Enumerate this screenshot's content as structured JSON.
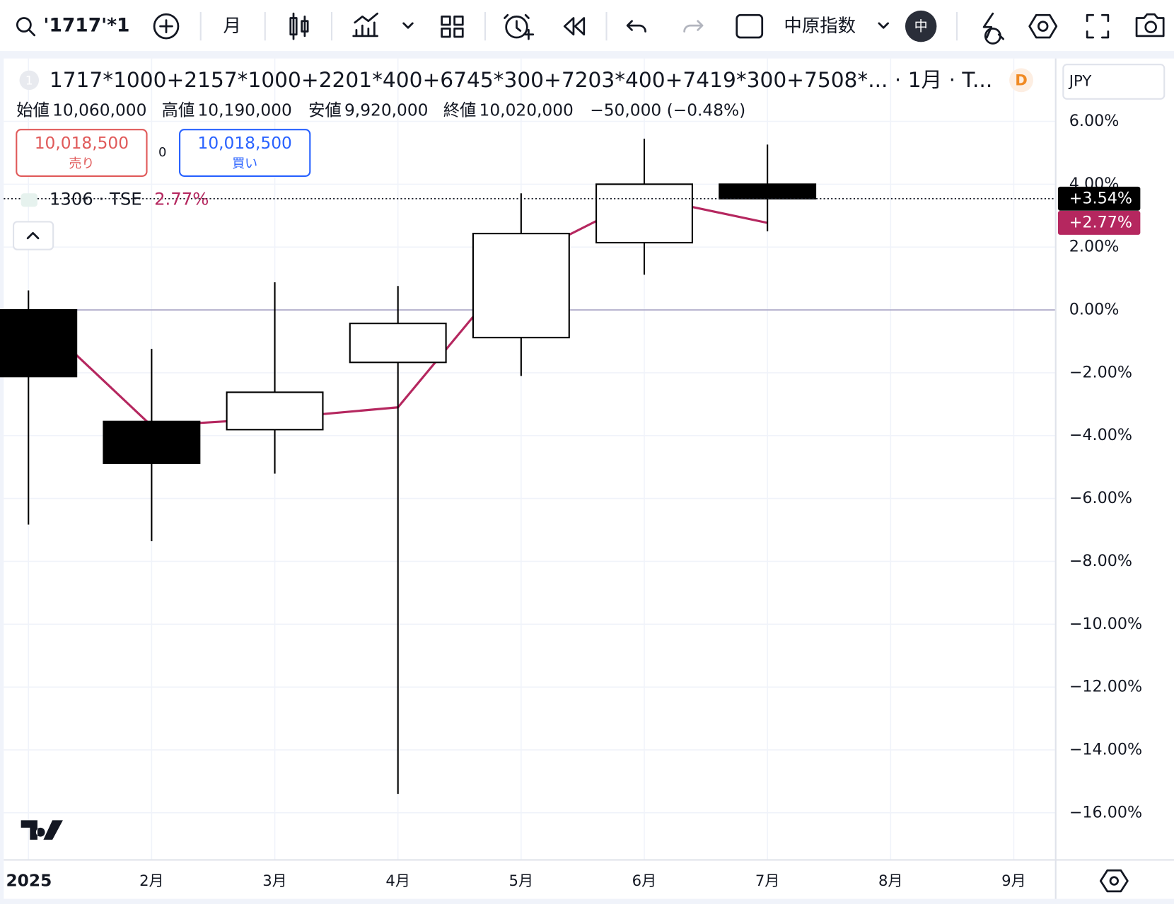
{
  "toolbar": {
    "symbol": "'1717'*1",
    "interval": "月",
    "indicator": "中原指数",
    "badge": "中"
  },
  "legend": {
    "index": "1",
    "title": "1717*1000+2157*1000+2201*400+6745*300+7203*400+7419*300+7508*... · 1月 · T...",
    "source": "D",
    "ohlc": [
      {
        "label": "始値",
        "value": "10,060,000"
      },
      {
        "label": "高値",
        "value": "10,190,000"
      },
      {
        "label": "安値",
        "value": "9,920,000"
      },
      {
        "label": "終値",
        "value": "10,020,000"
      }
    ],
    "change": "−50,000 (−0.48%)"
  },
  "trade": {
    "sell_price": "10,018,500",
    "sell": "売り",
    "spread": "0",
    "buy_price": "10,018,500",
    "buy": "買い"
  },
  "currency": "JPY",
  "chart_data": {
    "type": "candlestick",
    "categories": [
      "2025",
      "2月",
      "3月",
      "4月",
      "5月",
      "6月",
      "7月",
      "8月",
      "9月"
    ],
    "open": [
      0,
      -3.55,
      -3.81,
      -1.67,
      -0.88,
      2.14,
      4.0,
      null,
      null
    ],
    "high": [
      0.62,
      -1.24,
      0.88,
      0.76,
      3.71,
      5.45,
      5.26,
      null,
      null
    ],
    "low": [
      -6.83,
      -7.36,
      -5.21,
      -15.4,
      -2.1,
      1.12,
      2.5,
      null,
      null
    ],
    "close": [
      -2.12,
      -4.88,
      -2.62,
      -0.43,
      2.43,
      4.0,
      3.54,
      null,
      null
    ],
    "up_color": "#ffffff",
    "down_color": "#000000",
    "last_label": "+3.54%",
    "compare": {
      "name": "1306 · TSE",
      "color": "#b5275f",
      "values": [
        0,
        -3.69,
        -3.45,
        -3.1,
        1.62,
        3.6,
        2.77,
        null,
        null
      ],
      "legend_label": "2.77%",
      "last_label": "+2.77%"
    },
    "baseline": 0,
    "ylim": [
      -17.5,
      8
    ],
    "yticks": [
      {
        "value": 6,
        "label": "6.00%"
      },
      {
        "value": 4,
        "label": "4.00%"
      },
      {
        "value": 2,
        "label": "2.00%"
      },
      {
        "value": 0,
        "label": "0.00%"
      },
      {
        "value": -2,
        "label": "−2.00%"
      },
      {
        "value": -4,
        "label": "−4.00%"
      },
      {
        "value": -6,
        "label": "−6.00%"
      },
      {
        "value": -8,
        "label": "−8.00%"
      },
      {
        "value": -10,
        "label": "−10.00%"
      },
      {
        "value": -12,
        "label": "−12.00%"
      },
      {
        "value": -14,
        "label": "−14.00%"
      },
      {
        "value": -16,
        "label": "−16.00%"
      }
    ],
    "grid": true
  }
}
